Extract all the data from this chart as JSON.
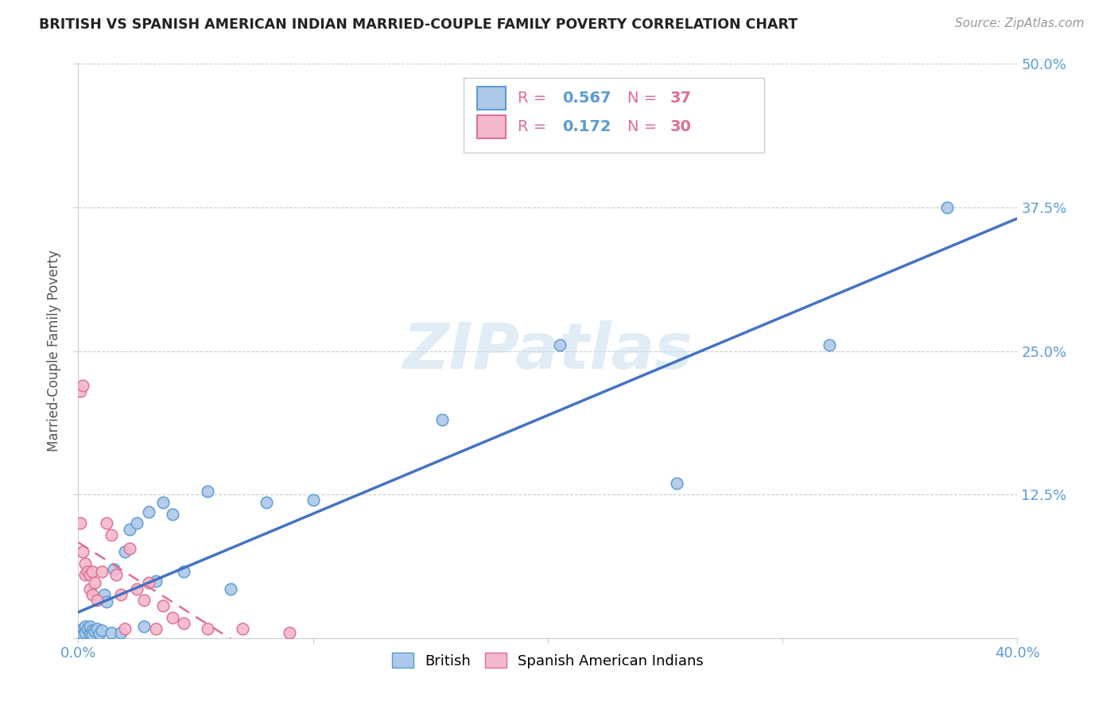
{
  "title": "BRITISH VS SPANISH AMERICAN INDIAN MARRIED-COUPLE FAMILY POVERTY CORRELATION CHART",
  "source": "Source: ZipAtlas.com",
  "ylabel": "Married-Couple Family Poverty",
  "xlim": [
    0.0,
    0.4
  ],
  "ylim": [
    0.0,
    0.5
  ],
  "xticks": [
    0.0,
    0.1,
    0.2,
    0.3,
    0.4
  ],
  "yticks": [
    0.0,
    0.125,
    0.25,
    0.375,
    0.5
  ],
  "british_R": 0.567,
  "british_N": 37,
  "spanish_R": 0.172,
  "spanish_N": 30,
  "british_color": "#adc8e8",
  "british_edge_color": "#5b9bd5",
  "spanish_color": "#f4b8cc",
  "spanish_edge_color": "#e07090",
  "british_line_color": "#4472c4",
  "spanish_line_color": "#e07090",
  "watermark_color": "#cce0f0",
  "british_x": [
    0.001,
    0.002,
    0.002,
    0.003,
    0.003,
    0.004,
    0.005,
    0.005,
    0.006,
    0.006,
    0.007,
    0.008,
    0.009,
    0.01,
    0.011,
    0.012,
    0.014,
    0.015,
    0.018,
    0.02,
    0.022,
    0.025,
    0.028,
    0.03,
    0.033,
    0.036,
    0.04,
    0.045,
    0.055,
    0.065,
    0.08,
    0.1,
    0.155,
    0.205,
    0.255,
    0.32,
    0.37
  ],
  "british_y": [
    0.005,
    0.008,
    0.003,
    0.01,
    0.005,
    0.008,
    0.004,
    0.01,
    0.007,
    0.003,
    0.006,
    0.008,
    0.004,
    0.007,
    0.038,
    0.032,
    0.005,
    0.06,
    0.005,
    0.075,
    0.095,
    0.1,
    0.01,
    0.11,
    0.05,
    0.118,
    0.108,
    0.058,
    0.128,
    0.043,
    0.118,
    0.12,
    0.19,
    0.255,
    0.135,
    0.255,
    0.375
  ],
  "spanish_x": [
    0.001,
    0.001,
    0.002,
    0.002,
    0.003,
    0.003,
    0.004,
    0.005,
    0.005,
    0.006,
    0.006,
    0.007,
    0.008,
    0.01,
    0.012,
    0.014,
    0.016,
    0.018,
    0.02,
    0.022,
    0.025,
    0.028,
    0.03,
    0.033,
    0.036,
    0.04,
    0.045,
    0.055,
    0.07,
    0.09
  ],
  "spanish_y": [
    0.215,
    0.1,
    0.22,
    0.075,
    0.065,
    0.055,
    0.058,
    0.055,
    0.043,
    0.058,
    0.038,
    0.048,
    0.033,
    0.058,
    0.1,
    0.09,
    0.055,
    0.038,
    0.008,
    0.078,
    0.043,
    0.033,
    0.048,
    0.008,
    0.028,
    0.018,
    0.013,
    0.008,
    0.008,
    0.005
  ]
}
